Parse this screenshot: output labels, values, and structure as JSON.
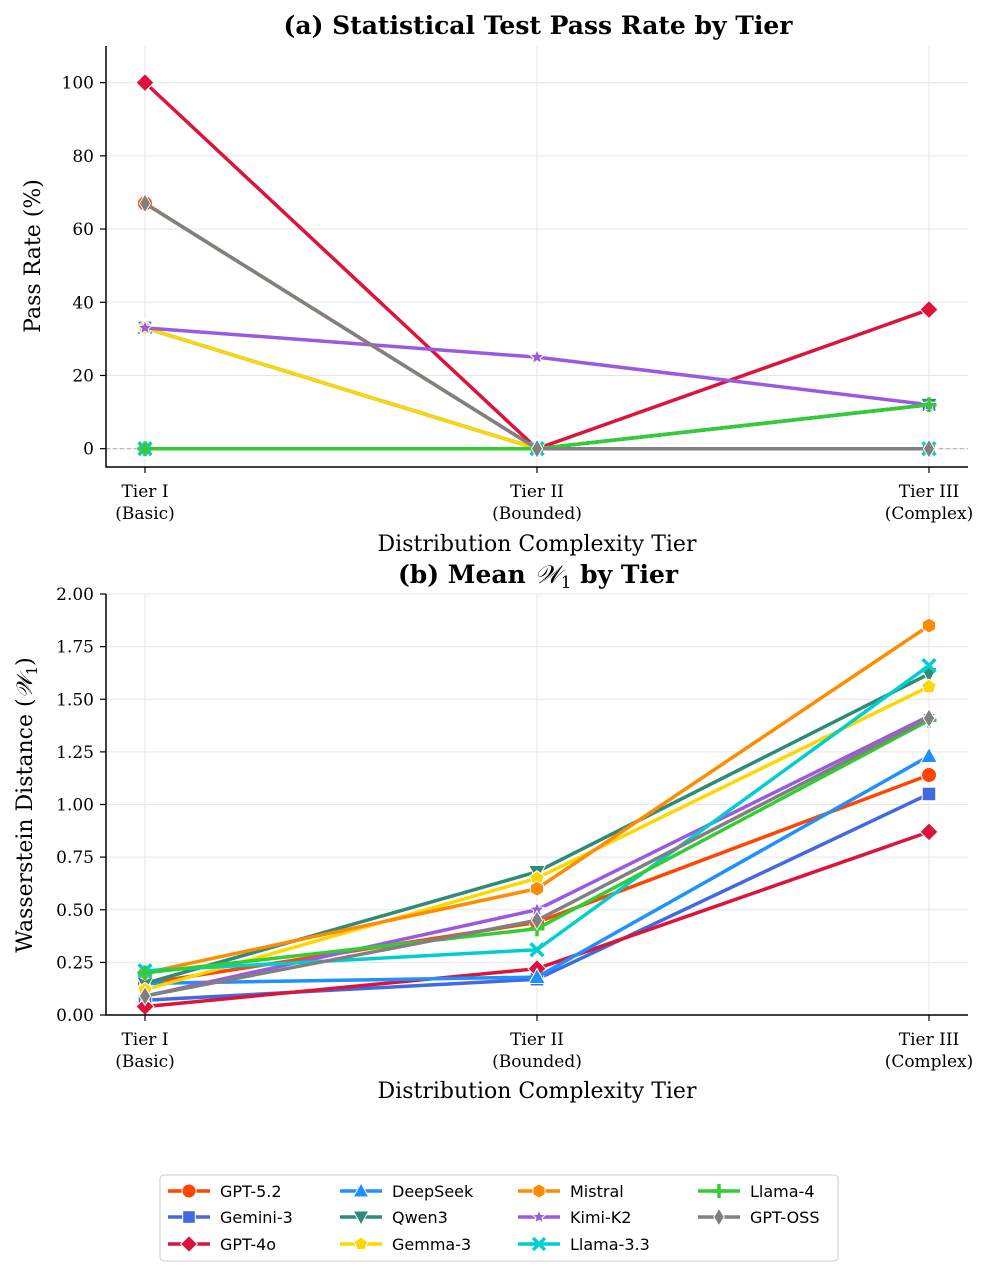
{
  "chart_data": [
    {
      "type": "line",
      "title": "(a) Statistical Test Pass Rate by Tier",
      "xlabel": "Distribution Complexity Tier",
      "ylabel": "Pass Rate (%)",
      "categories": [
        [
          "Tier I",
          "(Basic)"
        ],
        [
          "Tier II",
          "(Bounded)"
        ],
        [
          "Tier III",
          "(Complex)"
        ]
      ],
      "ylim": [
        -5,
        110
      ],
      "yticks": [
        0,
        20,
        40,
        60,
        80,
        100
      ],
      "ytick_labels": [
        "0",
        "20",
        "40",
        "60",
        "80",
        "100"
      ],
      "grid": true,
      "series": [
        {
          "name": "GPT-5.2",
          "values": [
            67,
            0,
            0
          ]
        },
        {
          "name": "Gemini-3",
          "values": [
            33,
            0,
            12
          ]
        },
        {
          "name": "GPT-4o",
          "values": [
            100,
            0,
            38
          ]
        },
        {
          "name": "DeepSeek",
          "values": [
            33,
            0,
            0
          ]
        },
        {
          "name": "Qwen3",
          "values": [
            0,
            0,
            12
          ]
        },
        {
          "name": "Gemma-3",
          "values": [
            33,
            0,
            0
          ]
        },
        {
          "name": "Mistral",
          "values": [
            0,
            0,
            0
          ]
        },
        {
          "name": "Kimi-K2",
          "values": [
            33,
            25,
            12
          ]
        },
        {
          "name": "Llama-3.3",
          "values": [
            0,
            0,
            0
          ]
        },
        {
          "name": "Llama-4",
          "values": [
            0,
            0,
            12
          ]
        },
        {
          "name": "GPT-OSS",
          "values": [
            67,
            0,
            0
          ]
        }
      ]
    },
    {
      "type": "line",
      "title_prefix": "(b) Mean ",
      "title_symbol": "𝒲",
      "title_subscript": "1",
      "title_suffix": " by Tier",
      "xlabel": "Distribution Complexity Tier",
      "ylabel_prefix": "Wasserstein Distance (",
      "ylabel_symbol": "𝒲",
      "ylabel_subscript": "1",
      "ylabel_suffix": ")",
      "categories": [
        [
          "Tier I",
          "(Basic)"
        ],
        [
          "Tier II",
          "(Bounded)"
        ],
        [
          "Tier III",
          "(Complex)"
        ]
      ],
      "ylim": [
        0,
        2.0
      ],
      "yticks": [
        0,
        0.25,
        0.5,
        0.75,
        1.0,
        1.25,
        1.5,
        1.75,
        2.0
      ],
      "ytick_labels": [
        "0.00",
        "0.25",
        "0.50",
        "0.75",
        "1.00",
        "1.25",
        "1.50",
        "1.75",
        "2.00"
      ],
      "grid": true,
      "series": [
        {
          "name": "GPT-5.2",
          "values": [
            0.15,
            0.44,
            1.14
          ]
        },
        {
          "name": "Gemini-3",
          "values": [
            0.07,
            0.17,
            1.05
          ]
        },
        {
          "name": "GPT-4o",
          "values": [
            0.04,
            0.22,
            0.87
          ]
        },
        {
          "name": "DeepSeek",
          "values": [
            0.15,
            0.18,
            1.23
          ]
        },
        {
          "name": "Qwen3",
          "values": [
            0.15,
            0.68,
            1.62
          ]
        },
        {
          "name": "Gemma-3",
          "values": [
            0.12,
            0.65,
            1.56
          ]
        },
        {
          "name": "Mistral",
          "values": [
            0.2,
            0.6,
            1.85
          ]
        },
        {
          "name": "Kimi-K2",
          "values": [
            0.09,
            0.5,
            1.42
          ]
        },
        {
          "name": "Llama-3.3",
          "values": [
            0.21,
            0.31,
            1.66
          ]
        },
        {
          "name": "Llama-4",
          "values": [
            0.2,
            0.41,
            1.4
          ]
        },
        {
          "name": "GPT-OSS",
          "values": [
            0.09,
            0.45,
            1.41
          ]
        }
      ]
    }
  ],
  "legend": {
    "position": "bottom-center",
    "columns": 4,
    "entries": [
      {
        "name": "GPT-5.2",
        "color": "#ff4500",
        "marker": "circle"
      },
      {
        "name": "Gemini-3",
        "color": "#4169e1",
        "marker": "square"
      },
      {
        "name": "GPT-4o",
        "color": "#dc143c",
        "marker": "diamond"
      },
      {
        "name": "DeepSeek",
        "color": "#1e90ff",
        "marker": "triangle-up"
      },
      {
        "name": "Qwen3",
        "color": "#2e8b7a",
        "marker": "triangle-down"
      },
      {
        "name": "Gemma-3",
        "color": "#ffd700",
        "marker": "pentagon"
      },
      {
        "name": "Mistral",
        "color": "#ff8c00",
        "marker": "hexagon"
      },
      {
        "name": "Kimi-K2",
        "color": "#9b59e0",
        "marker": "star"
      },
      {
        "name": "Llama-3.3",
        "color": "#00ced1",
        "marker": "x"
      },
      {
        "name": "Llama-4",
        "color": "#32cd32",
        "marker": "plus"
      },
      {
        "name": "GPT-OSS",
        "color": "#808080",
        "marker": "thin-diamond"
      }
    ]
  }
}
